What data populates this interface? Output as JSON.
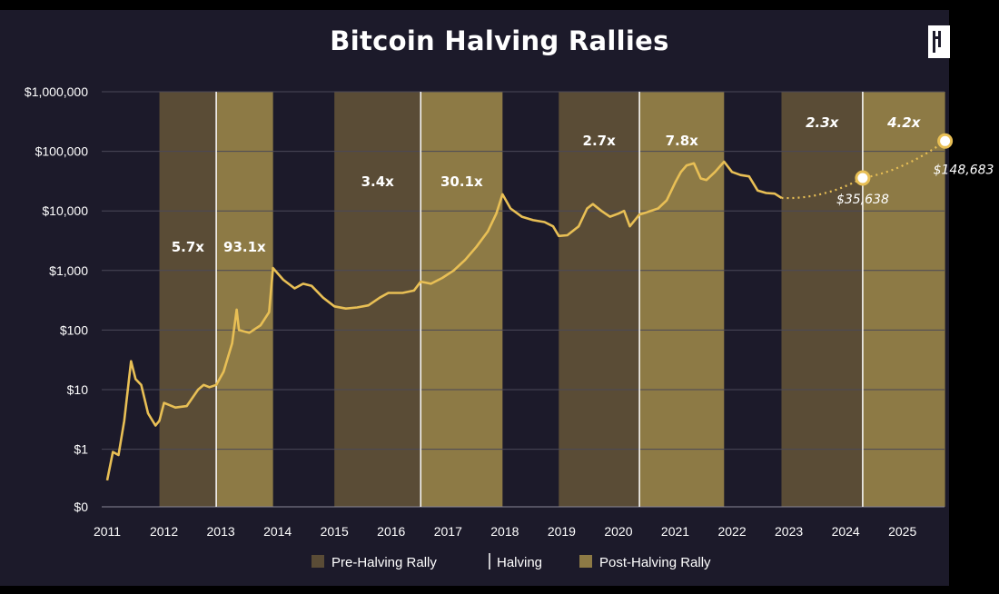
{
  "title": "Bitcoin Halving Rallies",
  "colors": {
    "background": "#1c1a2a",
    "pre_halving": "#5a4c36",
    "post_halving": "#8d7a45",
    "price_line": "#e8bf55",
    "halving_line": "#ffffff"
  },
  "chart_data": {
    "type": "line",
    "title": "Bitcoin Halving Rallies",
    "y_scale": "log",
    "y_ticks": [
      "$1,000,000",
      "$100,000",
      "$10,000",
      "$1,000",
      "$100",
      "$10",
      "$1",
      "$0"
    ],
    "x_ticks": [
      "2011",
      "2012",
      "2013",
      "2014",
      "2015",
      "2016",
      "2017",
      "2018",
      "2019",
      "2020",
      "2021",
      "2022",
      "2023",
      "2024",
      "2025"
    ],
    "legend": {
      "position": "bottom",
      "items": [
        {
          "label": "Pre-Halving Rally",
          "kind": "pre"
        },
        {
          "label": "Halving",
          "kind": "halving"
        },
        {
          "label": "Post-Halving Rally",
          "kind": "post"
        }
      ]
    },
    "halvings": [
      2012.92,
      2016.52,
      2020.37,
      2024.3
    ],
    "rallies": [
      {
        "kind": "pre",
        "start": 2011.92,
        "end": 2012.92,
        "multiple": "5.7x"
      },
      {
        "kind": "post",
        "start": 2012.92,
        "end": 2013.92,
        "multiple": "93.1x"
      },
      {
        "kind": "pre",
        "start": 2015.0,
        "end": 2016.52,
        "multiple": "3.4x"
      },
      {
        "kind": "post",
        "start": 2016.52,
        "end": 2017.96,
        "multiple": "30.1x"
      },
      {
        "kind": "pre",
        "start": 2018.95,
        "end": 2020.37,
        "multiple": "2.7x"
      },
      {
        "kind": "post",
        "start": 2020.37,
        "end": 2021.86,
        "multiple": "7.8x"
      },
      {
        "kind": "pre",
        "start": 2022.87,
        "end": 2024.3,
        "multiple": "2.3x"
      },
      {
        "kind": "post",
        "start": 2024.3,
        "end": 2025.75,
        "multiple": "4.2x"
      }
    ],
    "series": [
      {
        "values": [
          [
            2011.0,
            0.3
          ],
          [
            2011.1,
            0.9
          ],
          [
            2011.2,
            0.8
          ],
          [
            2011.3,
            3
          ],
          [
            2011.42,
            30
          ],
          [
            2011.5,
            15
          ],
          [
            2011.6,
            12
          ],
          [
            2011.72,
            4
          ],
          [
            2011.85,
            2.5
          ],
          [
            2011.92,
            3
          ],
          [
            2012.0,
            6
          ],
          [
            2012.2,
            5
          ],
          [
            2012.4,
            5.3
          ],
          [
            2012.6,
            10
          ],
          [
            2012.7,
            12
          ],
          [
            2012.8,
            11
          ],
          [
            2012.92,
            12
          ],
          [
            2013.05,
            20
          ],
          [
            2013.2,
            60
          ],
          [
            2013.28,
            220
          ],
          [
            2013.32,
            100
          ],
          [
            2013.5,
            90
          ],
          [
            2013.7,
            120
          ],
          [
            2013.85,
            200
          ],
          [
            2013.92,
            1100
          ],
          [
            2014.1,
            700
          ],
          [
            2014.3,
            500
          ],
          [
            2014.45,
            600
          ],
          [
            2014.6,
            550
          ],
          [
            2014.8,
            350
          ],
          [
            2015.0,
            250
          ],
          [
            2015.2,
            230
          ],
          [
            2015.4,
            240
          ],
          [
            2015.6,
            260
          ],
          [
            2015.8,
            350
          ],
          [
            2015.95,
            420
          ],
          [
            2016.2,
            420
          ],
          [
            2016.4,
            460
          ],
          [
            2016.52,
            650
          ],
          [
            2016.7,
            600
          ],
          [
            2016.9,
            750
          ],
          [
            2017.1,
            1000
          ],
          [
            2017.3,
            1500
          ],
          [
            2017.5,
            2500
          ],
          [
            2017.7,
            4500
          ],
          [
            2017.85,
            9000
          ],
          [
            2017.96,
            19000
          ],
          [
            2018.1,
            11000
          ],
          [
            2018.3,
            8000
          ],
          [
            2018.5,
            7000
          ],
          [
            2018.7,
            6500
          ],
          [
            2018.85,
            5500
          ],
          [
            2018.95,
            3800
          ],
          [
            2019.1,
            3900
          ],
          [
            2019.3,
            5500
          ],
          [
            2019.45,
            11000
          ],
          [
            2019.55,
            13000
          ],
          [
            2019.7,
            10000
          ],
          [
            2019.85,
            8000
          ],
          [
            2020.0,
            9000
          ],
          [
            2020.1,
            10000
          ],
          [
            2020.2,
            5500
          ],
          [
            2020.37,
            8700
          ],
          [
            2020.5,
            9500
          ],
          [
            2020.7,
            11000
          ],
          [
            2020.85,
            15000
          ],
          [
            2021.0,
            30000
          ],
          [
            2021.1,
            45000
          ],
          [
            2021.2,
            58000
          ],
          [
            2021.33,
            63000
          ],
          [
            2021.45,
            35000
          ],
          [
            2021.55,
            33000
          ],
          [
            2021.7,
            45000
          ],
          [
            2021.86,
            67000
          ],
          [
            2022.0,
            45000
          ],
          [
            2022.15,
            40000
          ],
          [
            2022.3,
            38000
          ],
          [
            2022.45,
            22000
          ],
          [
            2022.6,
            20000
          ],
          [
            2022.75,
            19500
          ],
          [
            2022.87,
            16500
          ]
        ]
      }
    ],
    "projection": [
      [
        2022.87,
        16500
      ],
      [
        2024.3,
        35638
      ],
      [
        2025.75,
        148683
      ]
    ],
    "projection_labels": [
      "$35,638",
      "$148,683"
    ]
  }
}
